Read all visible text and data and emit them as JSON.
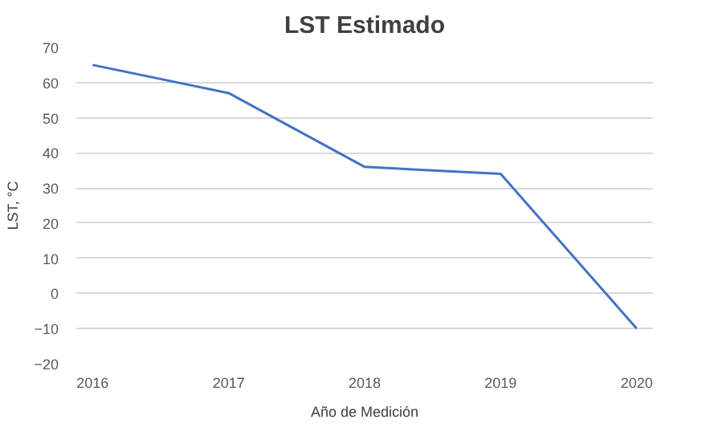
{
  "chart_data": {
    "type": "line",
    "title": "LST Estimado",
    "xlabel": "Año de Medición",
    "ylabel": "LST, °C",
    "categories": [
      "2016",
      "2017",
      "2018",
      "2019",
      "2020"
    ],
    "series": [
      {
        "color": "#4472c4",
        "values": [
          65,
          57,
          36,
          34,
          -10
        ]
      }
    ],
    "ylim": [
      -20,
      70
    ],
    "yticks": [
      -20,
      -10,
      0,
      10,
      20,
      30,
      40,
      50,
      60,
      70
    ],
    "grid": "y",
    "marker": "none",
    "line_style": "solid"
  }
}
